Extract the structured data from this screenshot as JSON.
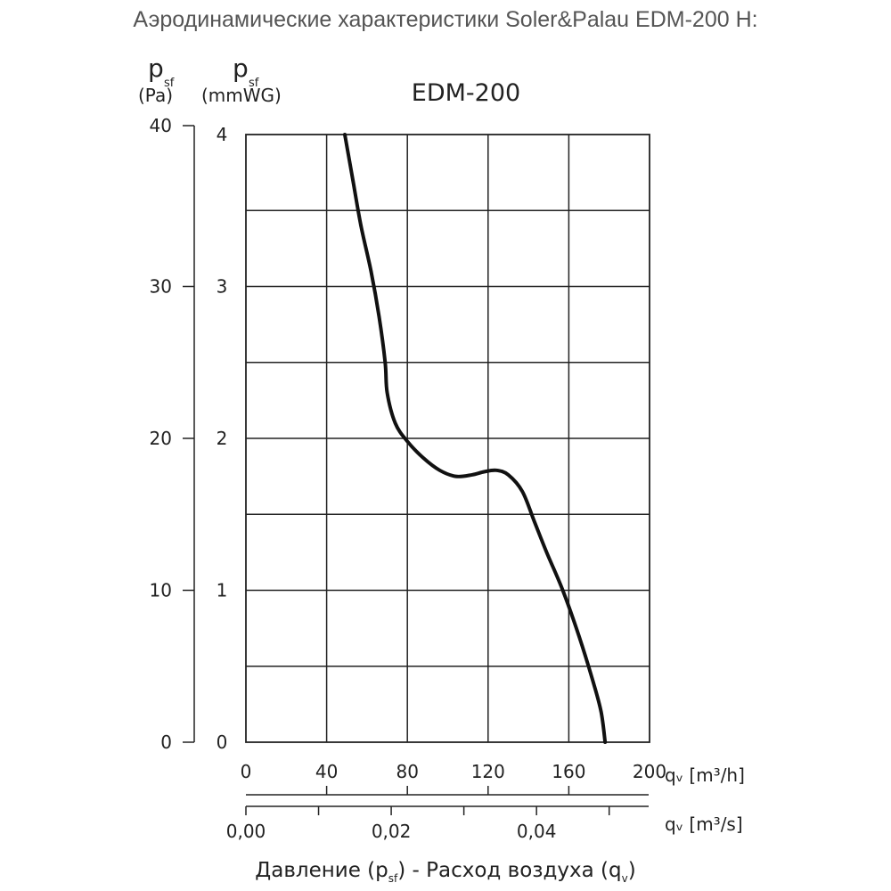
{
  "page_heading": "Аэродинамические характеристики Soler&Palau EDM-200 H:",
  "chart_data": {
    "type": "line",
    "title": "EDM-200",
    "x_axis": {
      "label": "qᵥ [m³/h]",
      "range": [
        0,
        200
      ],
      "ticks": [
        "0",
        "40",
        "80",
        "120",
        "160",
        "200"
      ]
    },
    "x2_axis": {
      "label": "qᵥ [m³/s]",
      "ticks": [
        "0,00",
        "0,02",
        "0,04"
      ]
    },
    "y_axis": {
      "label_symbol": "p",
      "label_sub": "sf",
      "unit": "(Pa)",
      "range": [
        0,
        40
      ],
      "ticks": [
        "0",
        "10",
        "20",
        "30",
        "40"
      ]
    },
    "y2_axis": {
      "label_symbol": "p",
      "label_sub": "sf",
      "unit": "(mmWG)",
      "range": [
        0,
        4
      ],
      "ticks": [
        "0",
        "1",
        "2",
        "3",
        "4"
      ]
    },
    "grid": true,
    "series": [
      {
        "color": "#111111",
        "points": [
          [
            49,
            40
          ],
          [
            53,
            37
          ],
          [
            57,
            34
          ],
          [
            62,
            31
          ],
          [
            66,
            28
          ],
          [
            69,
            25
          ],
          [
            70,
            23
          ],
          [
            74,
            21
          ],
          [
            80,
            19.8
          ],
          [
            88,
            18.7
          ],
          [
            96,
            17.9
          ],
          [
            104,
            17.5
          ],
          [
            112,
            17.6
          ],
          [
            118,
            17.8
          ],
          [
            124,
            17.9
          ],
          [
            130,
            17.6
          ],
          [
            137,
            16.5
          ],
          [
            143,
            14.5
          ],
          [
            149,
            12.5
          ],
          [
            157,
            10
          ],
          [
            165,
            7
          ],
          [
            172,
            4
          ],
          [
            176,
            2
          ],
          [
            178,
            0
          ]
        ]
      }
    ],
    "footer_caption": {
      "part1": "Давление (p",
      "sub1": "sf",
      "part2": ") - Расход воздуха (q",
      "sub2": "v",
      "part3": ")"
    }
  }
}
